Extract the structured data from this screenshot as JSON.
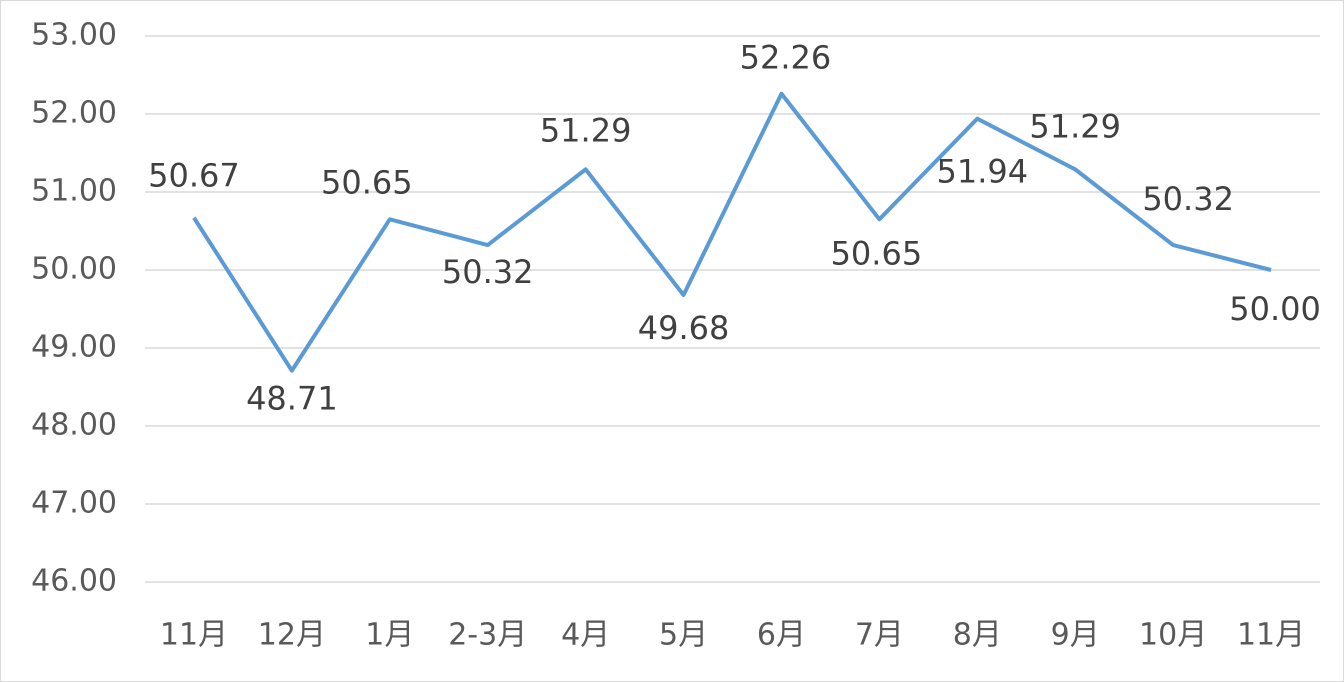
{
  "chart_data": {
    "type": "line",
    "categories": [
      "11月",
      "12月",
      "1月",
      "2-3月",
      "4月",
      "5月",
      "6月",
      "7月",
      "8月",
      "9月",
      "10月",
      "11月"
    ],
    "series": [
      {
        "color": "#5b9bd5",
        "values": [
          50.67,
          48.71,
          50.65,
          50.32,
          51.29,
          49.68,
          52.26,
          50.65,
          51.94,
          51.29,
          50.32,
          50.0
        ],
        "value_labels": [
          "50.67",
          "48.71",
          "50.65",
          "50.32",
          "51.29",
          "49.68",
          "52.26",
          "50.65",
          "51.94",
          "51.29",
          "50.32",
          "50.00"
        ]
      }
    ],
    "ylim": [
      46,
      53
    ],
    "yticks": [
      {
        "value": 46,
        "label": "46.00"
      },
      {
        "value": 47,
        "label": "47.00"
      },
      {
        "value": 48,
        "label": "48.00"
      },
      {
        "value": 49,
        "label": "49.00"
      },
      {
        "value": 50,
        "label": "50.00"
      },
      {
        "value": 51,
        "label": "51.00"
      },
      {
        "value": 52,
        "label": "52.00"
      },
      {
        "value": 53,
        "label": "53.00"
      }
    ],
    "grid": true
  }
}
